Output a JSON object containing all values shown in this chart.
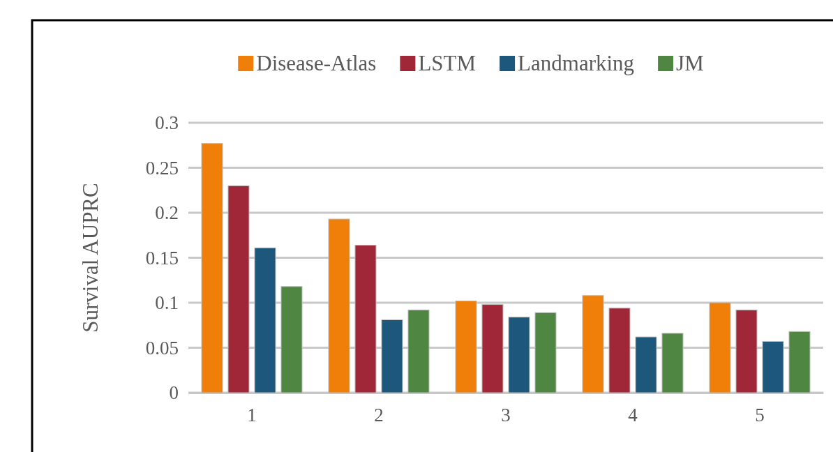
{
  "chart_data": {
    "type": "bar",
    "categories": [
      "1",
      "2",
      "3",
      "4",
      "5"
    ],
    "series": [
      {
        "name": "Disease-Atlas",
        "color": "#ef7f08",
        "values": [
          0.277,
          0.193,
          0.102,
          0.108,
          0.1
        ]
      },
      {
        "name": "LSTM",
        "color": "#a02738",
        "values": [
          0.23,
          0.164,
          0.098,
          0.094,
          0.092
        ]
      },
      {
        "name": "Landmarking",
        "color": "#1d587c",
        "values": [
          0.161,
          0.081,
          0.084,
          0.062,
          0.057
        ]
      },
      {
        "name": "JM",
        "color": "#4f8642",
        "values": [
          0.118,
          0.092,
          0.089,
          0.066,
          0.068
        ]
      }
    ],
    "ylabel": "Survival AUPRC",
    "ylim": [
      0,
      0.3
    ],
    "yticks": [
      0,
      0.05,
      0.1,
      0.15,
      0.2,
      0.25,
      0.3
    ],
    "grid": "y",
    "legend": "top"
  }
}
